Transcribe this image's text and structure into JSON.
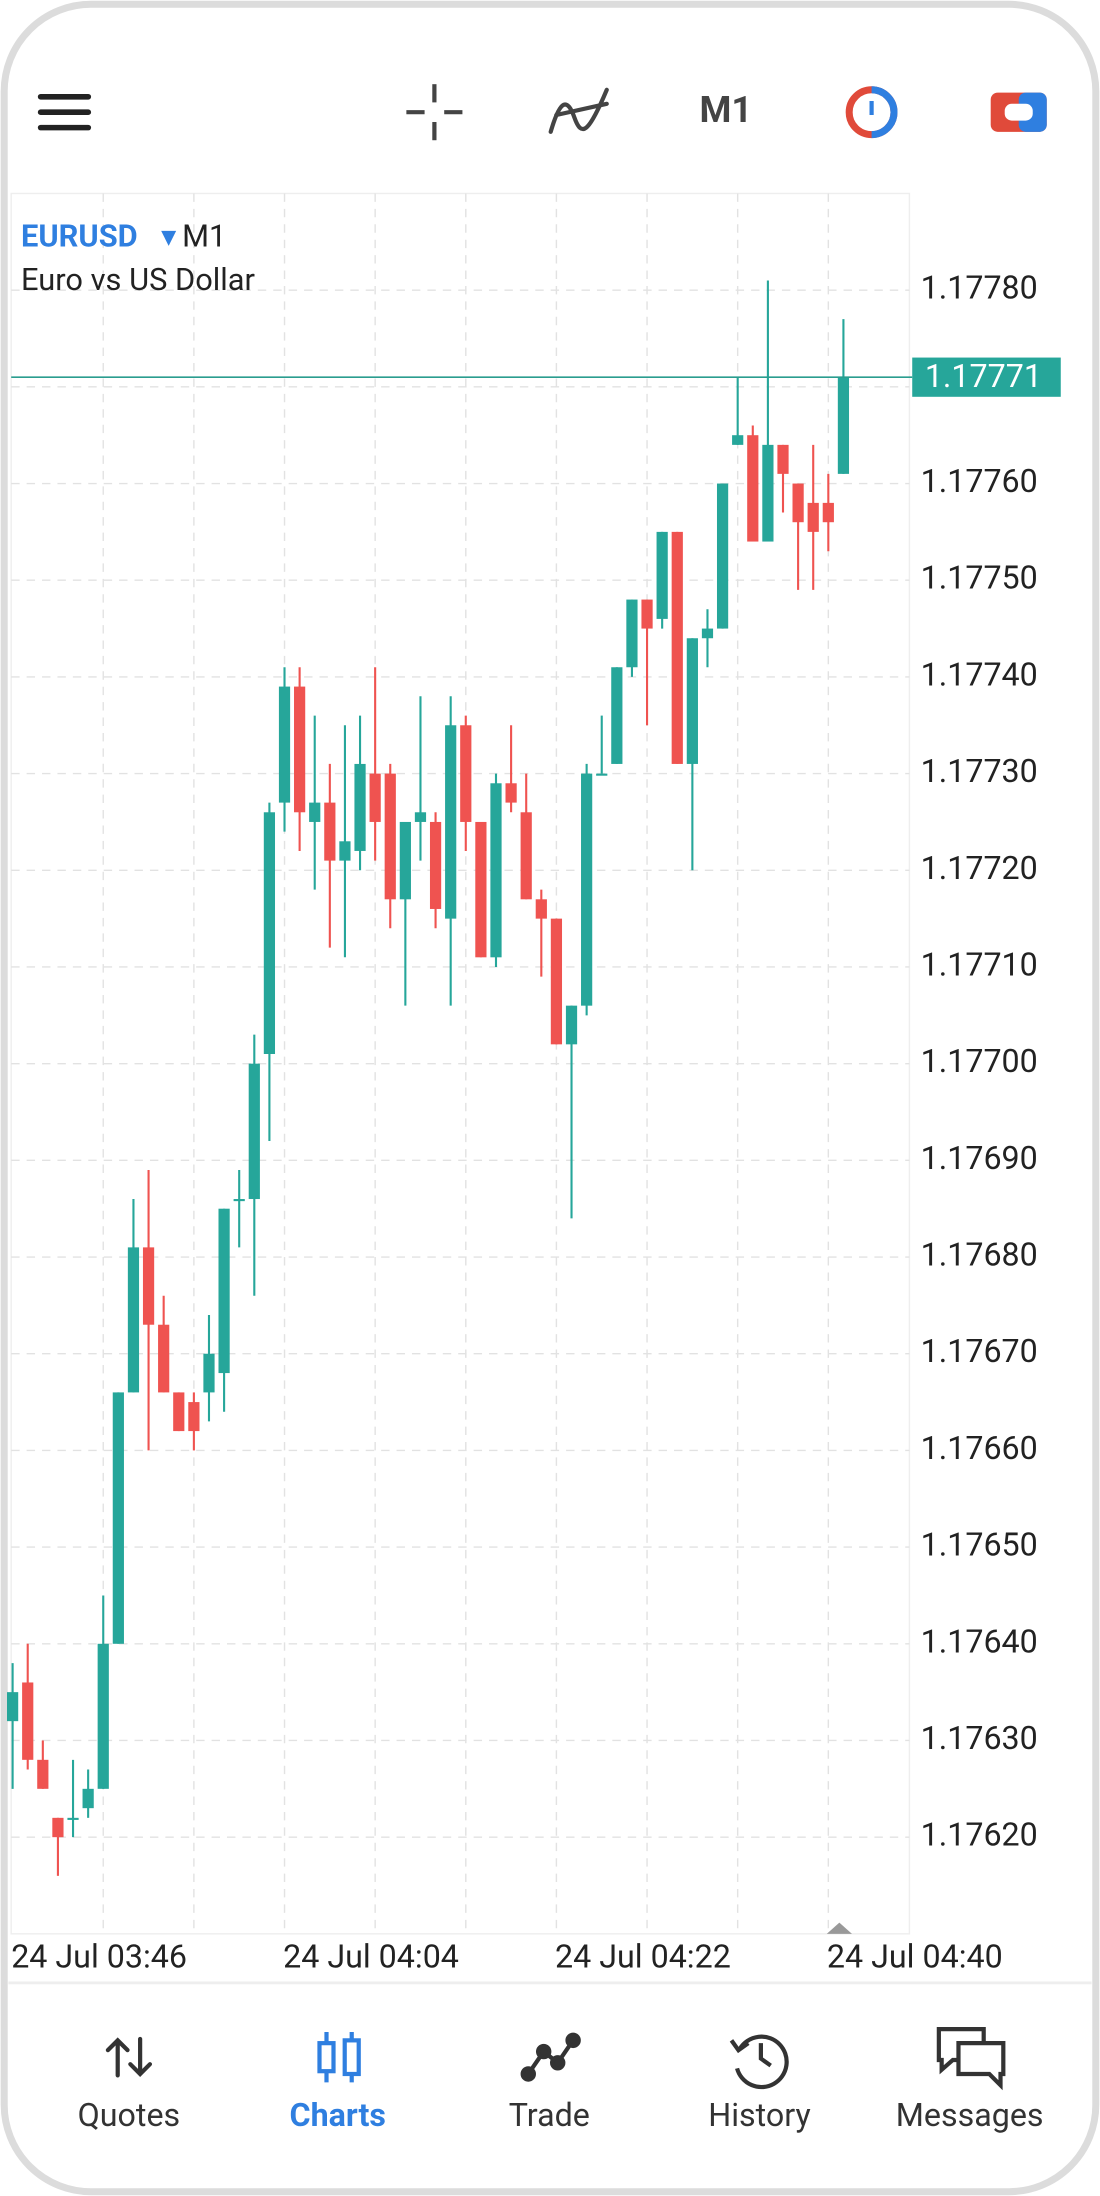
{
  "toolbar": {
    "timeframe": "M1"
  },
  "chart_data": {
    "type": "candlestick",
    "symbol": "EURUSD",
    "timeframe": "M1",
    "description": "Euro vs US Dollar",
    "categories": [
      "24 Jul 03:46",
      null,
      null,
      null,
      null,
      null,
      null,
      null,
      null,
      null,
      null,
      null,
      null,
      null,
      null,
      null,
      null,
      null,
      "24 Jul 04:04",
      null,
      null,
      null,
      null,
      null,
      null,
      null,
      null,
      null,
      null,
      null,
      null,
      null,
      null,
      null,
      null,
      null,
      "24 Jul 04:22",
      null,
      null,
      null,
      null,
      null,
      null,
      null,
      null,
      null,
      null,
      null,
      null,
      null,
      null,
      null,
      null,
      null,
      "24 Jul 04:40",
      null
    ],
    "open": [
      1.17632,
      1.17636,
      1.17628,
      1.17622,
      1.17622,
      1.17623,
      1.17625,
      1.1764,
      1.17666,
      1.17681,
      1.17673,
      1.17666,
      1.17665,
      1.17666,
      1.17668,
      1.17686,
      1.17686,
      1.17701,
      1.17727,
      1.17739,
      1.17725,
      1.17727,
      1.17721,
      1.17722,
      1.1773,
      1.1773,
      1.17717,
      1.17725,
      1.17725,
      1.17715,
      1.17735,
      1.17725,
      1.17711,
      1.17729,
      1.17726,
      1.17717,
      1.17715,
      1.17702,
      1.17706,
      1.1773,
      1.17731,
      1.17741,
      1.17748,
      1.17746,
      1.17755,
      1.17731,
      1.17744,
      1.17745,
      1.17764,
      1.17765,
      1.17754,
      1.17764,
      1.1776,
      1.17758,
      1.17758,
      1.17761
    ],
    "high": [
      1.17638,
      1.1764,
      1.1763,
      1.17622,
      1.17628,
      1.17627,
      1.17645,
      1.17666,
      1.17686,
      1.17689,
      1.17676,
      1.17666,
      1.17666,
      1.17674,
      1.17685,
      1.17689,
      1.17703,
      1.17727,
      1.17741,
      1.17741,
      1.17736,
      1.17731,
      1.17735,
      1.17736,
      1.17741,
      1.17731,
      1.17725,
      1.17738,
      1.17726,
      1.17738,
      1.17736,
      1.17725,
      1.1773,
      1.17735,
      1.1773,
      1.17718,
      1.17715,
      1.17706,
      1.17731,
      1.17736,
      1.17741,
      1.17748,
      1.17748,
      1.17755,
      1.17755,
      1.17744,
      1.17747,
      1.1776,
      1.17771,
      1.17766,
      1.17781,
      1.17764,
      1.1776,
      1.17764,
      1.17761,
      1.17777
    ],
    "low": [
      1.17625,
      1.17627,
      1.17625,
      1.17616,
      1.1762,
      1.17622,
      1.17625,
      1.1764,
      1.17666,
      1.1766,
      1.17666,
      1.17662,
      1.1766,
      1.17663,
      1.17664,
      1.17681,
      1.17676,
      1.17692,
      1.17724,
      1.17722,
      1.17718,
      1.17712,
      1.17711,
      1.1772,
      1.17721,
      1.17714,
      1.17706,
      1.17721,
      1.17714,
      1.17706,
      1.17722,
      1.17711,
      1.1771,
      1.17726,
      1.17717,
      1.17709,
      1.17702,
      1.17684,
      1.17705,
      1.1773,
      1.17731,
      1.1774,
      1.17735,
      1.17745,
      1.17731,
      1.1772,
      1.17741,
      1.17745,
      1.17764,
      1.17754,
      1.17754,
      1.17757,
      1.17749,
      1.17749,
      1.17753,
      1.17761
    ],
    "close": [
      1.17635,
      1.17628,
      1.17625,
      1.1762,
      1.17622,
      1.17625,
      1.1764,
      1.17666,
      1.17681,
      1.17673,
      1.17666,
      1.17662,
      1.17662,
      1.1767,
      1.17685,
      1.17686,
      1.177,
      1.17726,
      1.17739,
      1.17726,
      1.17727,
      1.17721,
      1.17723,
      1.17731,
      1.17725,
      1.17717,
      1.17725,
      1.17726,
      1.17716,
      1.17735,
      1.17725,
      1.17711,
      1.17729,
      1.17727,
      1.17717,
      1.17715,
      1.17702,
      1.17706,
      1.1773,
      1.1773,
      1.17741,
      1.17748,
      1.17745,
      1.17755,
      1.17731,
      1.17744,
      1.17745,
      1.1776,
      1.17765,
      1.17754,
      1.17764,
      1.17761,
      1.17756,
      1.17755,
      1.17756,
      1.17771
    ],
    "up_color": "#26a69a",
    "down_color": "#ef5350",
    "ylim": [
      1.1761,
      1.1779
    ],
    "yticks": [
      {
        "value": 1.1762,
        "label": "1.17620"
      },
      {
        "value": 1.1763,
        "label": "1.17630"
      },
      {
        "value": 1.1764,
        "label": "1.17640"
      },
      {
        "value": 1.1765,
        "label": "1.17650"
      },
      {
        "value": 1.1766,
        "label": "1.17660"
      },
      {
        "value": 1.1767,
        "label": "1.17670"
      },
      {
        "value": 1.1768,
        "label": "1.17680"
      },
      {
        "value": 1.1769,
        "label": "1.17690"
      },
      {
        "value": 1.177,
        "label": "1.17700"
      },
      {
        "value": 1.1771,
        "label": "1.17710"
      },
      {
        "value": 1.1772,
        "label": "1.17720"
      },
      {
        "value": 1.1773,
        "label": "1.17730"
      },
      {
        "value": 1.1774,
        "label": "1.17740"
      },
      {
        "value": 1.1775,
        "label": "1.17750"
      },
      {
        "value": 1.1776,
        "label": "1.17760"
      },
      {
        "value": 1.1777,
        "label": "1.17770"
      },
      {
        "value": 1.1778,
        "label": "1.17780"
      }
    ],
    "current_price": 1.17771,
    "grid": true
  },
  "nav": [
    {
      "label": "Quotes",
      "active": false
    },
    {
      "label": "Charts",
      "active": true
    },
    {
      "label": "Trade",
      "active": false
    },
    {
      "label": "History",
      "active": false
    },
    {
      "label": "Messages",
      "active": false
    }
  ]
}
